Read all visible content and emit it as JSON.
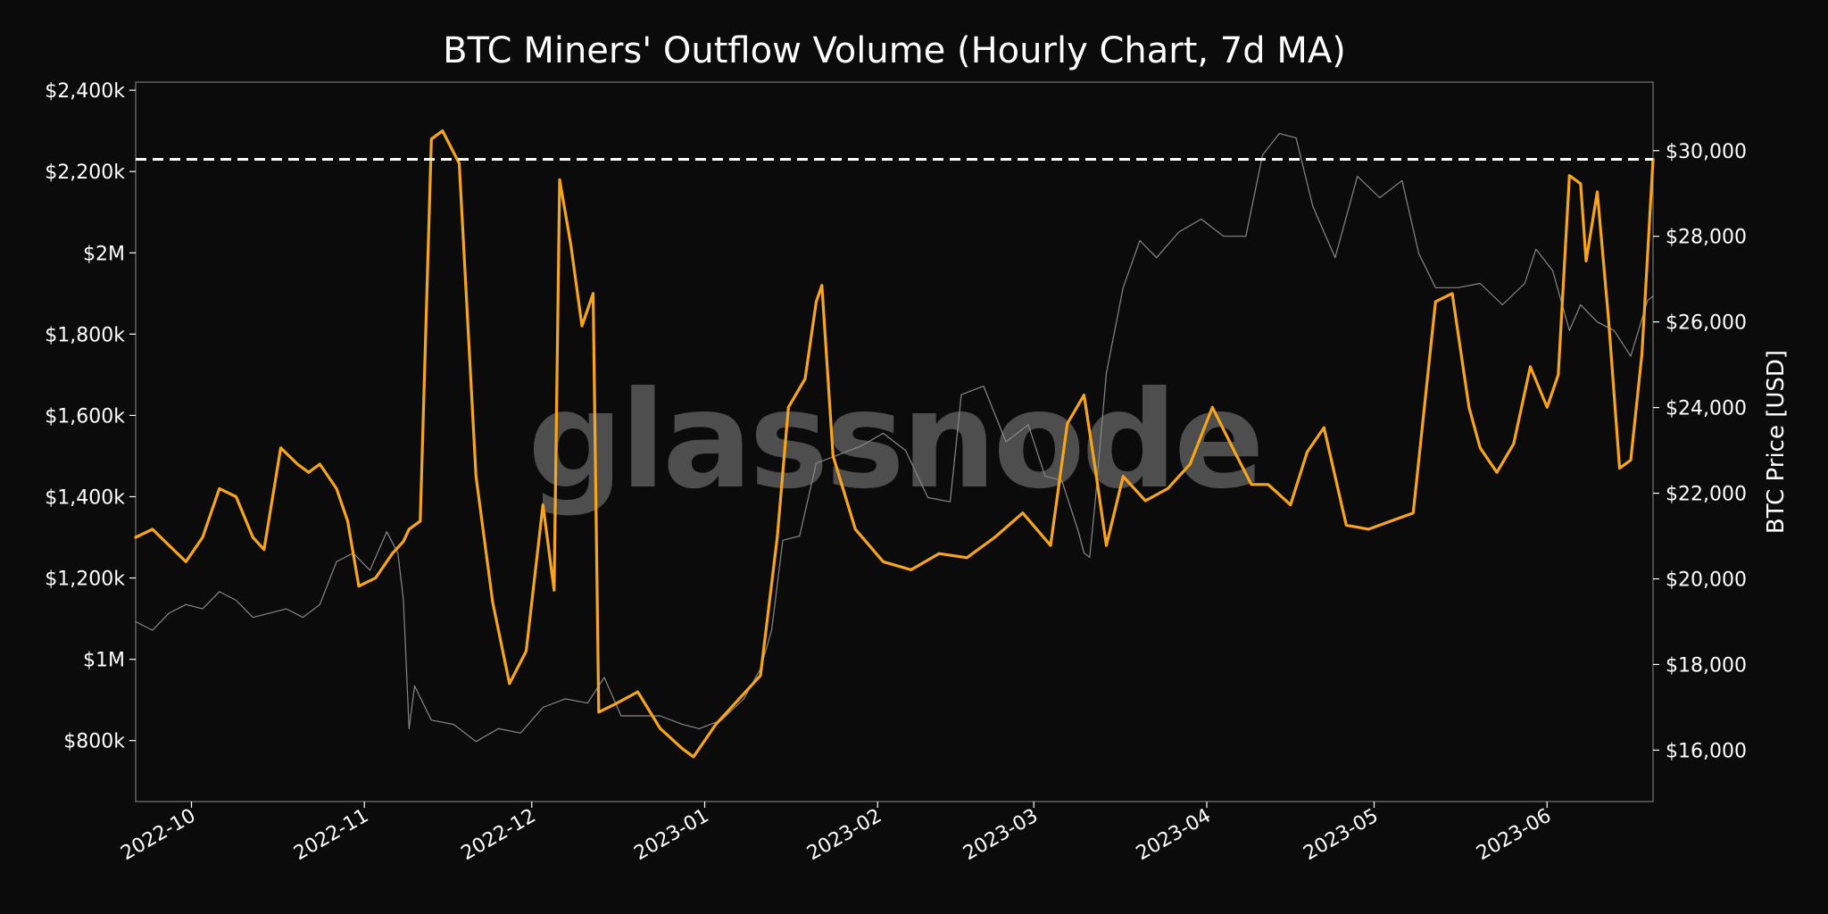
{
  "chart_data": {
    "type": "line",
    "title": "BTC Miners' Outflow Volume (Hourly Chart, 7d MA)",
    "watermark": "glassnode",
    "y2label": "BTC Price [USD]",
    "x_range": [
      "2022-09-21",
      "2023-06-20"
    ],
    "ylim": [
      650000,
      2420000
    ],
    "y2lim": [
      14800,
      31600
    ],
    "yticks": [
      {
        "value": 800000,
        "label": "$800k"
      },
      {
        "value": 1000000,
        "label": "$1M"
      },
      {
        "value": 1200000,
        "label": "$1,200k"
      },
      {
        "value": 1400000,
        "label": "$1,400k"
      },
      {
        "value": 1600000,
        "label": "$1,600k"
      },
      {
        "value": 1800000,
        "label": "$1,800k"
      },
      {
        "value": 2000000,
        "label": "$2M"
      },
      {
        "value": 2200000,
        "label": "$2,200k"
      },
      {
        "value": 2400000,
        "label": "$2,400k"
      }
    ],
    "y2ticks": [
      {
        "value": 16000,
        "label": "$16,000"
      },
      {
        "value": 18000,
        "label": "$18,000"
      },
      {
        "value": 20000,
        "label": "$20,000"
      },
      {
        "value": 22000,
        "label": "$22,000"
      },
      {
        "value": 24000,
        "label": "$24,000"
      },
      {
        "value": 26000,
        "label": "$26,000"
      },
      {
        "value": 28000,
        "label": "$28,000"
      },
      {
        "value": 30000,
        "label": "$30,000"
      }
    ],
    "xticks": [
      {
        "date": "2022-10-01",
        "label": "2022-10"
      },
      {
        "date": "2022-11-01",
        "label": "2022-11"
      },
      {
        "date": "2022-12-01",
        "label": "2022-12"
      },
      {
        "date": "2023-01-01",
        "label": "2023-01"
      },
      {
        "date": "2023-02-01",
        "label": "2023-02"
      },
      {
        "date": "2023-03-01",
        "label": "2023-03"
      },
      {
        "date": "2023-04-01",
        "label": "2023-04"
      },
      {
        "date": "2023-05-01",
        "label": "2023-05"
      },
      {
        "date": "2023-06-01",
        "label": "2023-06"
      }
    ],
    "reference_line": {
      "axis": "y",
      "value": 2230000,
      "style": "dashed",
      "color": "#ffffff"
    },
    "series": [
      {
        "axis": "y",
        "color": "#f7a51c",
        "x": [
          "2022-09-21",
          "2022-09-24",
          "2022-09-27",
          "2022-09-30",
          "2022-10-03",
          "2022-10-06",
          "2022-10-09",
          "2022-10-12",
          "2022-10-14",
          "2022-10-17",
          "2022-10-20",
          "2022-10-22",
          "2022-10-24",
          "2022-10-27",
          "2022-10-29",
          "2022-10-31",
          "2022-11-03",
          "2022-11-06",
          "2022-11-08",
          "2022-11-09",
          "2022-11-11",
          "2022-11-13",
          "2022-11-15",
          "2022-11-18",
          "2022-11-21",
          "2022-11-24",
          "2022-11-27",
          "2022-11-30",
          "2022-12-03",
          "2022-12-05",
          "2022-12-06",
          "2022-12-08",
          "2022-12-10",
          "2022-12-12",
          "2022-12-13",
          "2022-12-16",
          "2022-12-20",
          "2022-12-24",
          "2022-12-28",
          "2022-12-30",
          "2023-01-03",
          "2023-01-07",
          "2023-01-11",
          "2023-01-14",
          "2023-01-16",
          "2023-01-19",
          "2023-01-21",
          "2023-01-22",
          "2023-01-24",
          "2023-01-28",
          "2023-02-02",
          "2023-02-07",
          "2023-02-12",
          "2023-02-17",
          "2023-02-22",
          "2023-02-27",
          "2023-03-04",
          "2023-03-07",
          "2023-03-10",
          "2023-03-12",
          "2023-03-14",
          "2023-03-17",
          "2023-03-21",
          "2023-03-25",
          "2023-03-29",
          "2023-04-02",
          "2023-04-06",
          "2023-04-09",
          "2023-04-12",
          "2023-04-16",
          "2023-04-19",
          "2023-04-22",
          "2023-04-26",
          "2023-04-30",
          "2023-05-04",
          "2023-05-08",
          "2023-05-12",
          "2023-05-15",
          "2023-05-18",
          "2023-05-20",
          "2023-05-23",
          "2023-05-26",
          "2023-05-29",
          "2023-06-01",
          "2023-06-03",
          "2023-06-05",
          "2023-06-07",
          "2023-06-08",
          "2023-06-10",
          "2023-06-12",
          "2023-06-14",
          "2023-06-16",
          "2023-06-18",
          "2023-06-20"
        ],
        "values": [
          1300000,
          1320000,
          1280000,
          1240000,
          1300000,
          1420000,
          1400000,
          1300000,
          1270000,
          1520000,
          1480000,
          1460000,
          1480000,
          1420000,
          1340000,
          1180000,
          1200000,
          1260000,
          1290000,
          1320000,
          1340000,
          2280000,
          2300000,
          2220000,
          1450000,
          1140000,
          940000,
          1020000,
          1380000,
          1170000,
          2180000,
          2020000,
          1820000,
          1900000,
          870000,
          890000,
          920000,
          830000,
          780000,
          760000,
          840000,
          900000,
          960000,
          1300000,
          1620000,
          1690000,
          1880000,
          1920000,
          1500000,
          1320000,
          1240000,
          1220000,
          1260000,
          1250000,
          1300000,
          1360000,
          1280000,
          1580000,
          1650000,
          1470000,
          1280000,
          1450000,
          1390000,
          1420000,
          1480000,
          1620000,
          1510000,
          1430000,
          1430000,
          1380000,
          1510000,
          1570000,
          1330000,
          1320000,
          1340000,
          1360000,
          1880000,
          1900000,
          1620000,
          1520000,
          1460000,
          1530000,
          1720000,
          1620000,
          1700000,
          2190000,
          2170000,
          1980000,
          2150000,
          1840000,
          1470000,
          1490000,
          1750000,
          2230000
        ]
      },
      {
        "axis": "y2",
        "color": "#888888",
        "x": [
          "2022-09-21",
          "2022-09-24",
          "2022-09-27",
          "2022-09-30",
          "2022-10-03",
          "2022-10-06",
          "2022-10-09",
          "2022-10-12",
          "2022-10-15",
          "2022-10-18",
          "2022-10-21",
          "2022-10-24",
          "2022-10-27",
          "2022-10-30",
          "2022-11-02",
          "2022-11-05",
          "2022-11-07",
          "2022-11-08",
          "2022-11-09",
          "2022-11-10",
          "2022-11-13",
          "2022-11-17",
          "2022-11-21",
          "2022-11-25",
          "2022-11-29",
          "2022-12-03",
          "2022-12-07",
          "2022-12-11",
          "2022-12-14",
          "2022-12-17",
          "2022-12-20",
          "2022-12-24",
          "2022-12-28",
          "2022-12-31",
          "2023-01-04",
          "2023-01-08",
          "2023-01-11",
          "2023-01-13",
          "2023-01-15",
          "2023-01-18",
          "2023-01-21",
          "2023-01-25",
          "2023-01-29",
          "2023-02-02",
          "2023-02-06",
          "2023-02-10",
          "2023-02-14",
          "2023-02-16",
          "2023-02-20",
          "2023-02-24",
          "2023-02-28",
          "2023-03-03",
          "2023-03-06",
          "2023-03-09",
          "2023-03-10",
          "2023-03-11",
          "2023-03-12",
          "2023-03-14",
          "2023-03-17",
          "2023-03-20",
          "2023-03-23",
          "2023-03-27",
          "2023-03-31",
          "2023-04-04",
          "2023-04-08",
          "2023-04-11",
          "2023-04-14",
          "2023-04-17",
          "2023-04-20",
          "2023-04-24",
          "2023-04-28",
          "2023-05-02",
          "2023-05-06",
          "2023-05-09",
          "2023-05-12",
          "2023-05-16",
          "2023-05-20",
          "2023-05-24",
          "2023-05-28",
          "2023-05-30",
          "2023-06-02",
          "2023-06-05",
          "2023-06-07",
          "2023-06-10",
          "2023-06-13",
          "2023-06-16",
          "2023-06-19",
          "2023-06-20"
        ],
        "values": [
          19000,
          18800,
          19200,
          19400,
          19300,
          19700,
          19500,
          19100,
          19200,
          19300,
          19100,
          19400,
          20400,
          20600,
          20200,
          21100,
          20600,
          19500,
          16500,
          17500,
          16700,
          16600,
          16200,
          16500,
          16400,
          17000,
          17200,
          17100,
          17700,
          16800,
          16800,
          16800,
          16600,
          16500,
          16700,
          17200,
          17900,
          18800,
          20900,
          21000,
          22700,
          22900,
          23100,
          23400,
          23000,
          21900,
          21800,
          24300,
          24500,
          23200,
          23600,
          22400,
          22300,
          21100,
          20600,
          20500,
          21800,
          24800,
          26800,
          27900,
          27500,
          28100,
          28400,
          28000,
          28000,
          29900,
          30400,
          30300,
          28700,
          27500,
          29400,
          28900,
          29300,
          27600,
          26800,
          26800,
          26900,
          26400,
          26900,
          27700,
          27200,
          25800,
          26400,
          26000,
          25800,
          25200,
          26500,
          26600
        ]
      }
    ]
  }
}
